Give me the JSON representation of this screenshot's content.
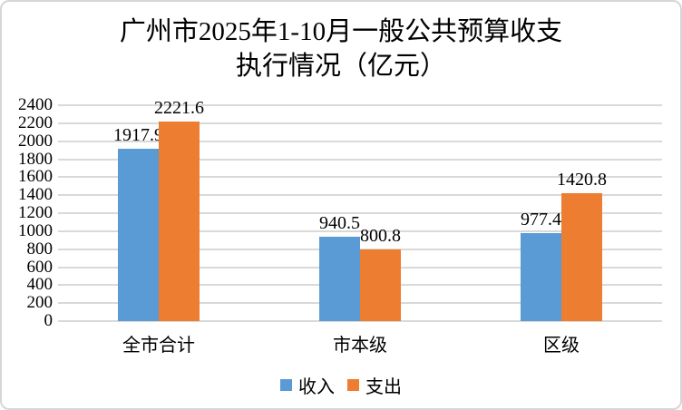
{
  "title": {
    "line1": "广州市2025年1-10月一般公共预算收支",
    "line2": "执行情况（亿元）"
  },
  "chart_data": {
    "type": "bar",
    "title": "广州市2025年1-10月一般公共预算收支执行情况（亿元）",
    "categories": [
      "全市合计",
      "市本级",
      "区级"
    ],
    "series": [
      {
        "name": "收入",
        "color": "#5B9BD5",
        "values": [
          1917.9,
          940.5,
          977.4
        ]
      },
      {
        "name": "支出",
        "color": "#ED7D31",
        "values": [
          2221.6,
          800.8,
          1420.8
        ]
      }
    ],
    "xlabel": "",
    "ylabel": "",
    "ylim": [
      0,
      2400
    ],
    "ytick_step": 200,
    "grid": true,
    "gridline_color": "#d9d9d9",
    "legend_position": "bottom"
  }
}
